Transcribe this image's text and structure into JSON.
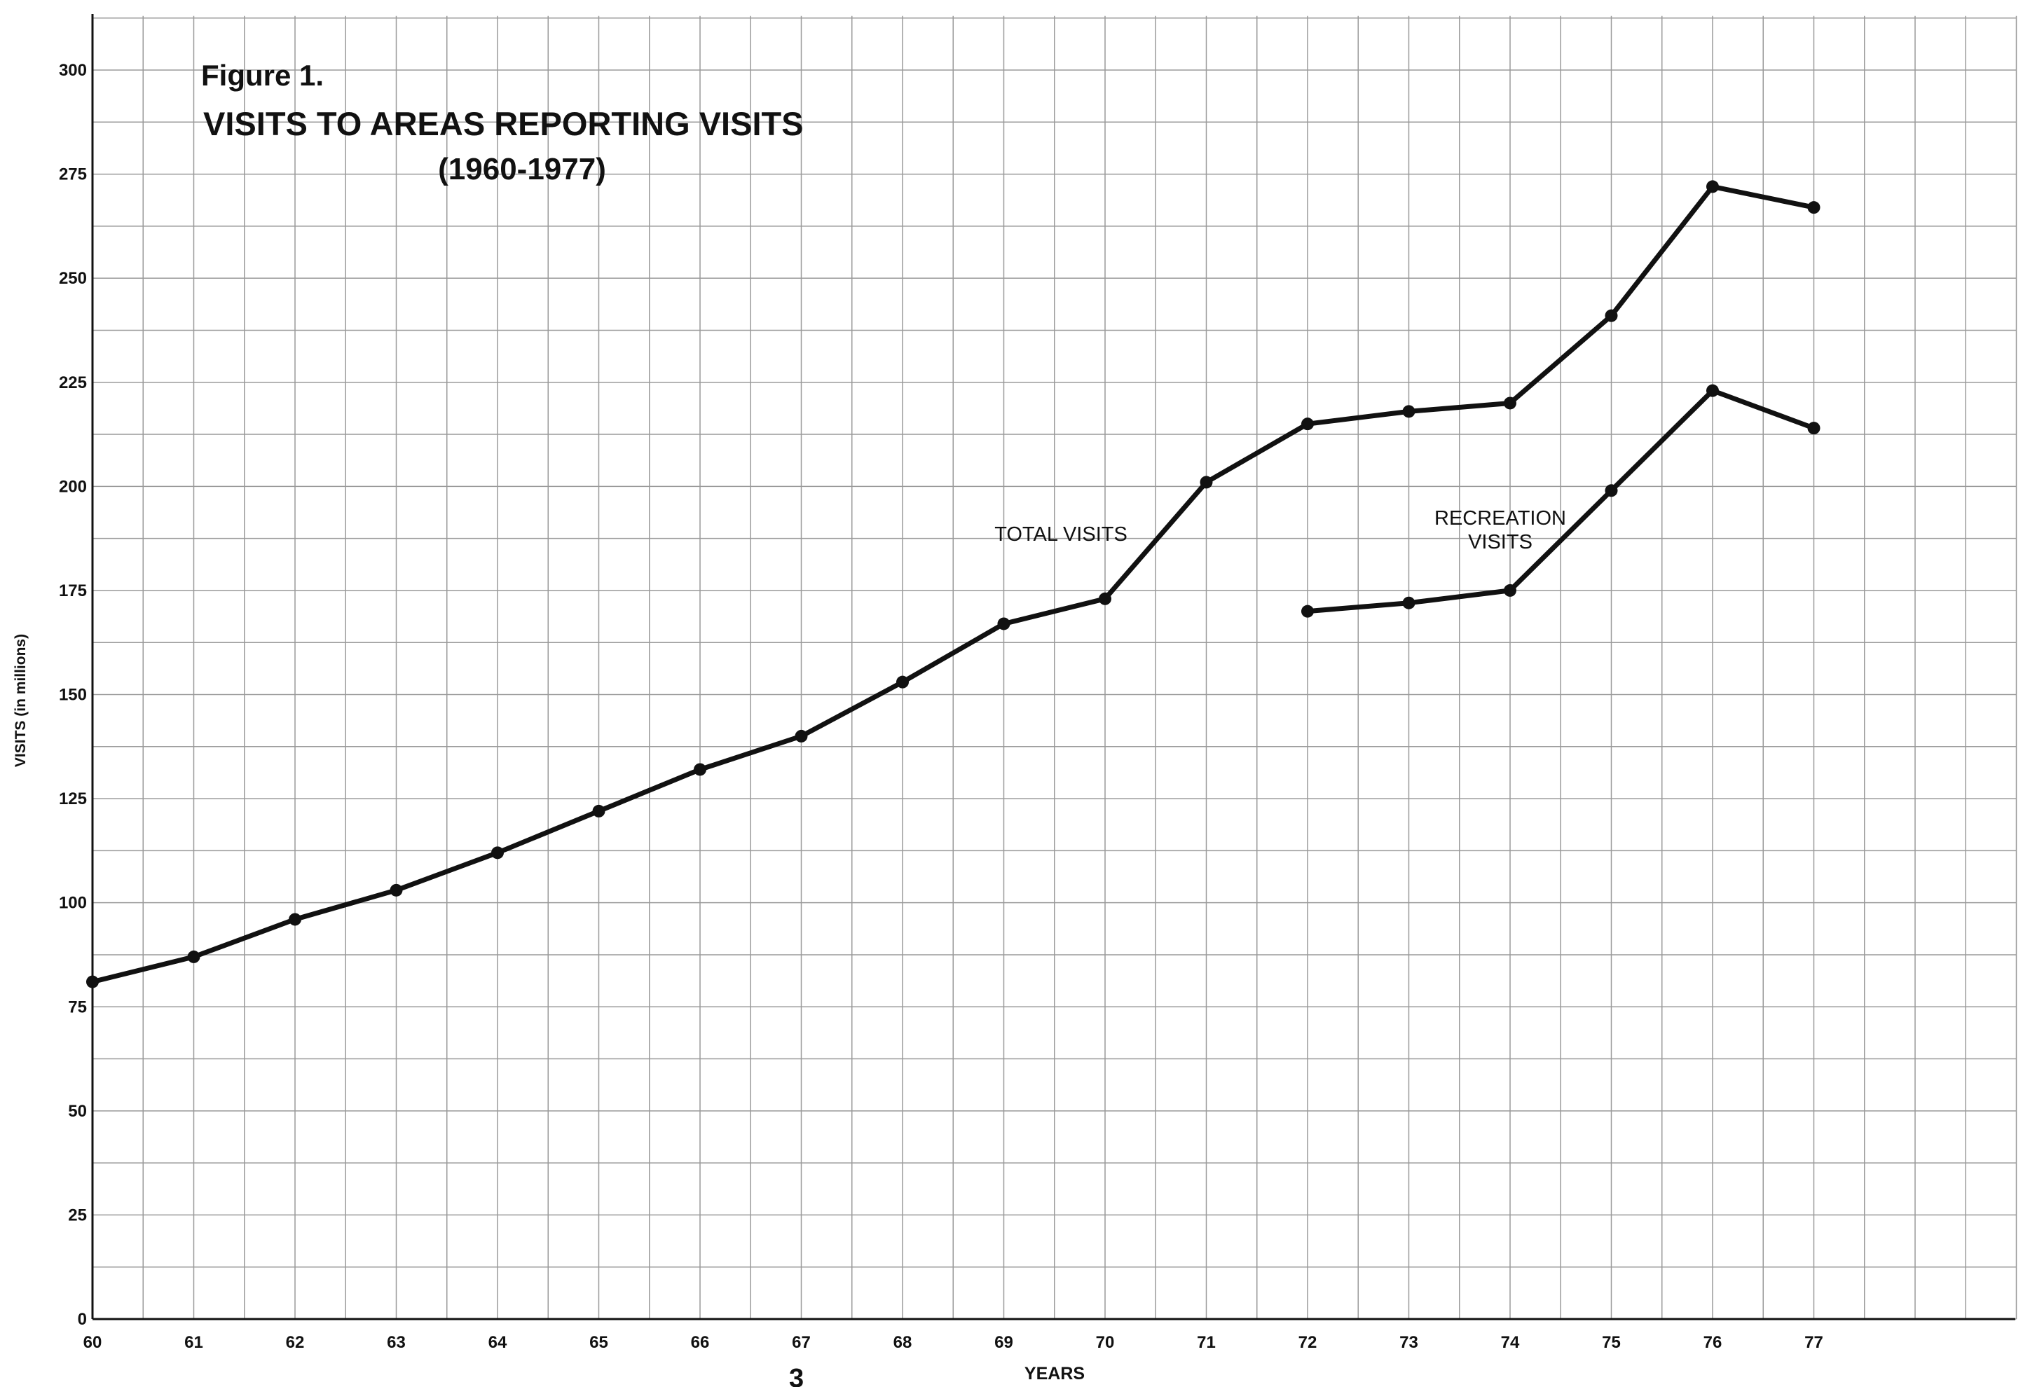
{
  "page_number": "3",
  "chart_data": {
    "type": "line",
    "figure_label": "Figure 1.",
    "title": "VISITS TO AREAS REPORTING VISITS",
    "subtitle": "(1960-1977)",
    "xlabel": "YEARS",
    "ylabel": "VISITS (in millions)",
    "x_ticks": [
      "60",
      "61",
      "62",
      "63",
      "64",
      "65",
      "66",
      "67",
      "68",
      "69",
      "70",
      "71",
      "72",
      "73",
      "74",
      "75",
      "76",
      "77"
    ],
    "y_ticks": [
      "0",
      "25",
      "50",
      "75",
      "100",
      "125",
      "150",
      "175",
      "200",
      "225",
      "250",
      "275",
      "300"
    ],
    "xlim": [
      60,
      79
    ],
    "ylim": [
      0,
      313
    ],
    "grid": true,
    "series": [
      {
        "name": "TOTAL VISITS",
        "x": [
          60,
          61,
          62,
          63,
          64,
          65,
          66,
          67,
          68,
          69,
          70,
          71,
          72,
          73,
          74,
          75,
          76,
          77
        ],
        "values": [
          81,
          87,
          96,
          103,
          112,
          122,
          132,
          140,
          153,
          167,
          173,
          201,
          215,
          218,
          220,
          241,
          272,
          267
        ],
        "color": "#111111"
      },
      {
        "name": "RECREATION VISITS",
        "label_lines": [
          "RECREATION",
          "VISITS"
        ],
        "x": [
          72,
          73,
          74,
          75,
          76,
          77
        ],
        "values": [
          170,
          172,
          175,
          199,
          223,
          214
        ],
        "color": "#111111"
      }
    ]
  }
}
